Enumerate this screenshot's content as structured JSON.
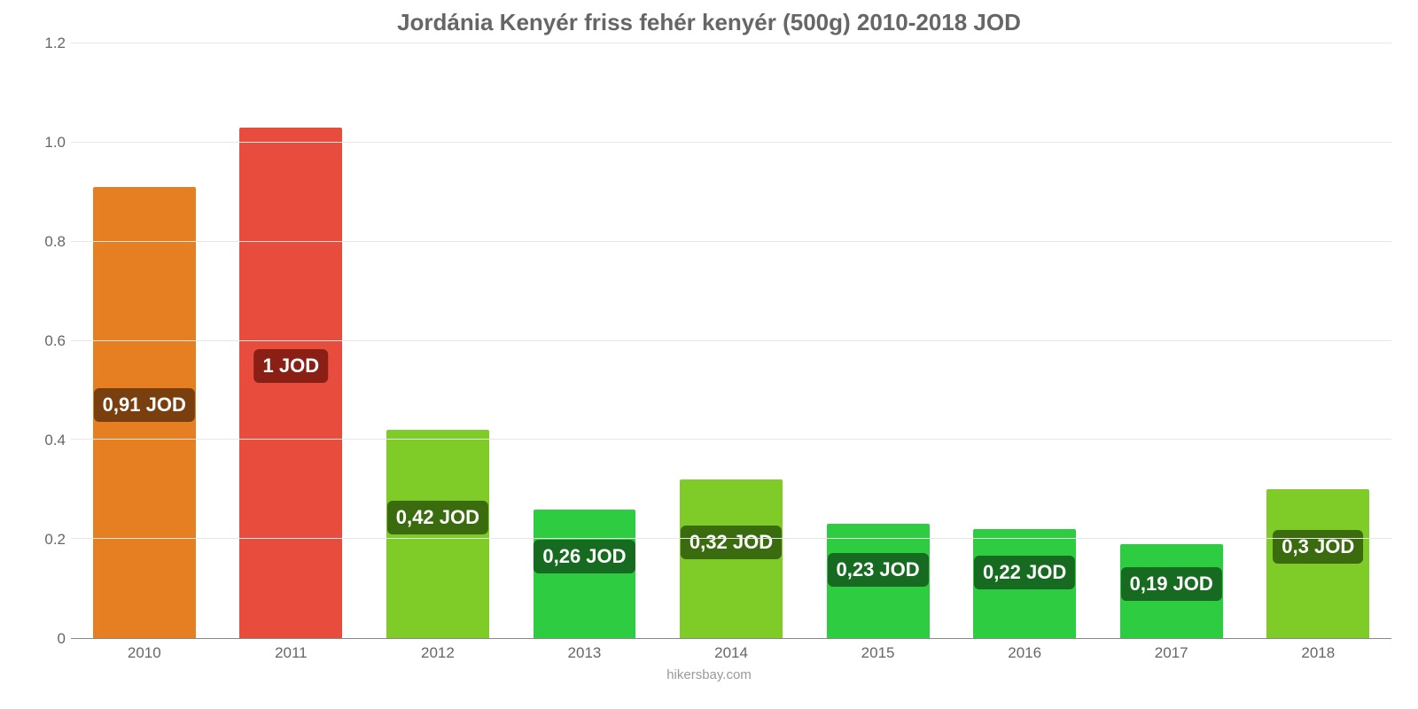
{
  "chart": {
    "type": "bar",
    "title": "Jordánia Kenyér friss fehér kenyér (500g) 2010-2018 JOD",
    "title_color": "#666666",
    "title_fontsize": 26,
    "background_color": "#ffffff",
    "grid_color": "#e6e6e6",
    "axis_label_color": "#666666",
    "axis_fontsize": 17,
    "ylim": [
      0,
      1.2
    ],
    "ytick_step": 0.2,
    "yticks": [
      "0",
      "0.2",
      "0.4",
      "0.6",
      "0.8",
      "1.0",
      "1.2"
    ],
    "categories": [
      "2010",
      "2011",
      "2012",
      "2013",
      "2014",
      "2015",
      "2016",
      "2017",
      "2018"
    ],
    "bar_width": 0.7,
    "data_label_fontsize": 22,
    "data_label_text_color": "#ffffff",
    "credit": "hikersbay.com",
    "credit_color": "#999999",
    "bars": [
      {
        "value": 0.91,
        "label": "0,91 JOD",
        "fill": "#e67e22",
        "label_bg": "#7a3f0f",
        "label_bottom_pct": 48
      },
      {
        "value": 1.03,
        "label": "1 JOD",
        "fill": "#e74c3c",
        "label_bg": "#8a1f16",
        "label_bottom_pct": 50
      },
      {
        "value": 0.42,
        "label": "0,42 JOD",
        "fill": "#7fcc28",
        "label_bg": "#3a6b0e",
        "label_bottom_pct": 50
      },
      {
        "value": 0.26,
        "label": "0,26 JOD",
        "fill": "#2ecc40",
        "label_bg": "#176b20",
        "label_bottom_pct": 50
      },
      {
        "value": 0.32,
        "label": "0,32 JOD",
        "fill": "#7fcc28",
        "label_bg": "#3a6b0e",
        "label_bottom_pct": 50
      },
      {
        "value": 0.23,
        "label": "0,23 JOD",
        "fill": "#2ecc40",
        "label_bg": "#176b20",
        "label_bottom_pct": 45
      },
      {
        "value": 0.22,
        "label": "0,22 JOD",
        "fill": "#2ecc40",
        "label_bg": "#176b20",
        "label_bottom_pct": 45
      },
      {
        "value": 0.19,
        "label": "0,19 JOD",
        "fill": "#2ecc40",
        "label_bg": "#176b20",
        "label_bottom_pct": 40
      },
      {
        "value": 0.3,
        "label": "0,3 JOD",
        "fill": "#7fcc28",
        "label_bg": "#3a6b0e",
        "label_bottom_pct": 50
      }
    ]
  }
}
